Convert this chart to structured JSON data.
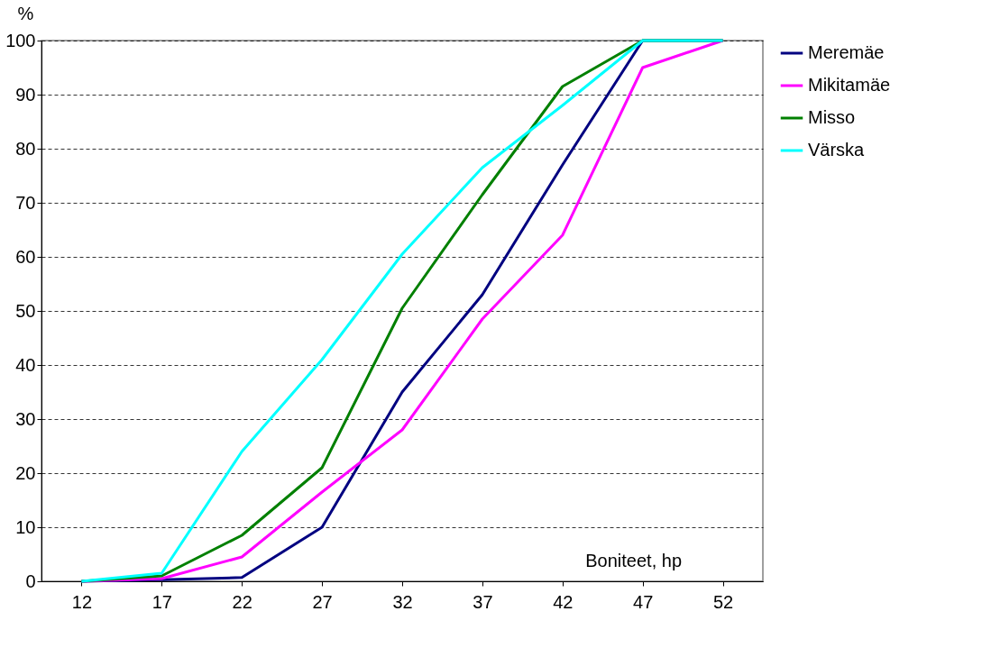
{
  "chart_data": {
    "type": "line",
    "ylabel": "%",
    "xlabel": "Boniteet, hp",
    "categories": [
      "12",
      "17",
      "22",
      "27",
      "32",
      "37",
      "42",
      "47",
      "52"
    ],
    "series": [
      {
        "name": "Meremäe",
        "color": "#000080",
        "values": [
          0,
          0.3,
          0.7,
          10,
          35,
          53,
          77,
          100,
          100
        ]
      },
      {
        "name": "Mikitamäe",
        "color": "#ff00ff",
        "values": [
          0,
          0.5,
          4.5,
          16.5,
          28,
          48.5,
          64,
          95,
          100
        ]
      },
      {
        "name": "Misso",
        "color": "#008000",
        "values": [
          0,
          1,
          8.5,
          21,
          50.5,
          71.5,
          91.5,
          100,
          100
        ]
      },
      {
        "name": "Värska",
        "color": "#00ffff",
        "values": [
          0,
          1.5,
          24,
          41,
          60.5,
          76.5,
          88,
          100,
          100
        ]
      }
    ],
    "ylim": [
      0,
      100
    ],
    "yticks": [
      0,
      10,
      20,
      30,
      40,
      50,
      60,
      70,
      80,
      90,
      100
    ],
    "grid": "y",
    "legend": "right",
    "marker": "none",
    "line_style": "solid"
  }
}
